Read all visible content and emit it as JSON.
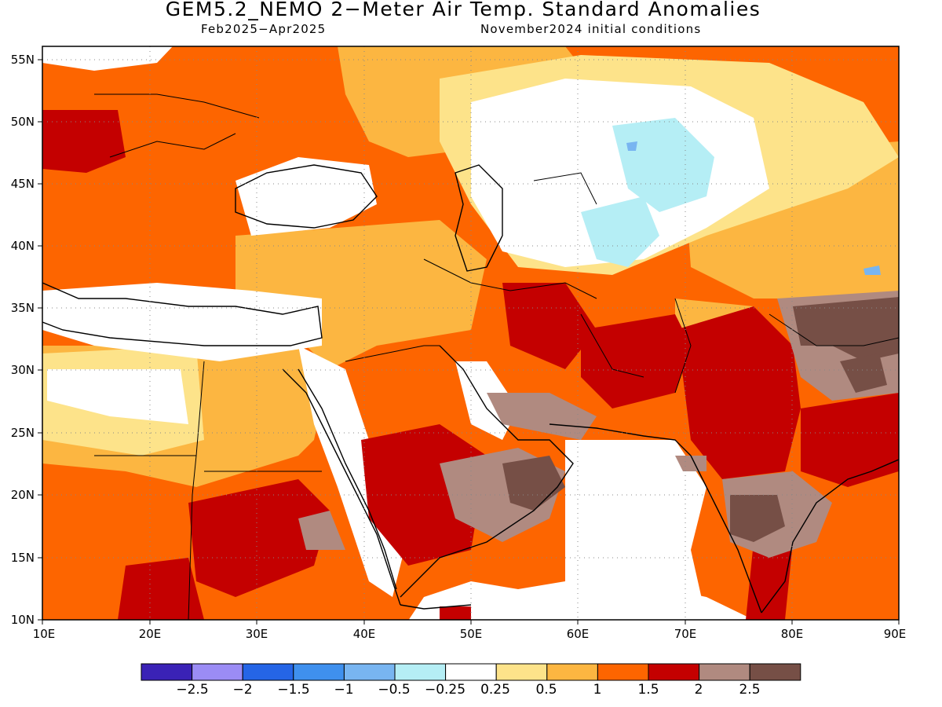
{
  "title": "GEM5.2_NEMO 2−Meter Air Temp. Standard Anomalies",
  "period": "Feb2025−Apr2025",
  "init": "November2024 initial conditions",
  "map": {
    "region": "Middle East / South Asia",
    "lon_range": [
      10,
      90
    ],
    "lat_range": [
      10,
      56
    ],
    "lon_ticks": [
      "10E",
      "20E",
      "30E",
      "40E",
      "50E",
      "60E",
      "70E",
      "80E",
      "90E"
    ],
    "lat_ticks": [
      "10N",
      "15N",
      "20N",
      "25N",
      "30N",
      "35N",
      "40N",
      "45N",
      "50N",
      "55N"
    ],
    "grid": "dotted"
  },
  "legend": {
    "colors": [
      "#3a22b6",
      "#9b8cf5",
      "#2565e6",
      "#3f90ee",
      "#78b5f1",
      "#b5eef5",
      "#ffffff",
      "#fde38a",
      "#fcb641",
      "#fd6500",
      "#c40000",
      "#b08a80",
      "#764f46"
    ],
    "labels": [
      "−2.5",
      "−2",
      "−1.5",
      "−1",
      "−0.5",
      "−0.25",
      "0.25",
      "0.5",
      "1",
      "1.5",
      "2",
      "2.5"
    ]
  }
}
